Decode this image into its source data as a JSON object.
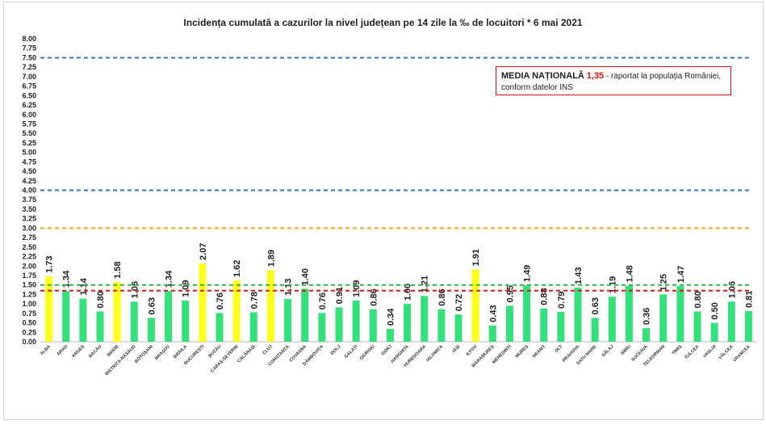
{
  "chart_data": {
    "type": "bar",
    "title": "Incidența cumulată a cazurilor la nivel județean pe 14 zile la ‰ de locuitori *   6 mai 2021",
    "ylim": [
      0,
      8
    ],
    "yticks": [
      "0.00",
      "0.25",
      "0.50",
      "0.75",
      "1.00",
      "1.25",
      "1.50",
      "1.75",
      "2.00",
      "2.25",
      "2.50",
      "2.75",
      "3.00",
      "3.25",
      "3.50",
      "3.75",
      "4.00",
      "4.25",
      "4.50",
      "4.75",
      "5.00",
      "5.25",
      "5.50",
      "5.75",
      "6.00",
      "6.25",
      "6.50",
      "6.75",
      "7.00",
      "7.25",
      "7.50",
      "7.75",
      "8.00"
    ],
    "grid": false,
    "categories": [
      "ALBA",
      "ARAD",
      "ARGEȘ",
      "BACĂU",
      "BIHOR",
      "BISTRIȚA-NĂSĂUD",
      "BOTOȘANI",
      "BRAȘOV",
      "BRĂILA",
      "BUCUREȘTI",
      "BUZĂU",
      "CARAȘ-SEVERIN",
      "CĂLĂRAȘI",
      "CLUJ",
      "CONSTANȚA",
      "COVASNA",
      "DÂMBOVIȚA",
      "DOLJ",
      "GALAȚI",
      "GIURGIU",
      "GORJ",
      "HARGHITA",
      "HUNEDOARA",
      "IALOMIȚA",
      "IAȘI",
      "ILFOV",
      "MARAMUREȘ",
      "MEHEDINȚI",
      "MUREȘ",
      "NEAMȚ",
      "OLT",
      "PRAHOVA",
      "SATU MARE",
      "SĂLAJ",
      "SIBIU",
      "SUCEAVA",
      "TELEORMAN",
      "TIMIȘ",
      "TULCEA",
      "VASLUI",
      "VÂLCEA",
      "VRANCEA"
    ],
    "values": [
      1.73,
      1.34,
      1.14,
      0.8,
      1.58,
      1.06,
      0.63,
      1.34,
      1.09,
      2.07,
      0.76,
      1.62,
      0.78,
      1.89,
      1.13,
      1.4,
      0.76,
      0.91,
      1.09,
      0.86,
      0.34,
      1.0,
      1.21,
      0.86,
      0.72,
      1.91,
      0.43,
      0.95,
      1.49,
      0.88,
      0.79,
      1.43,
      0.63,
      1.19,
      1.48,
      0.36,
      1.25,
      1.47,
      0.8,
      0.5,
      1.06,
      0.81
    ],
    "value_labels": [
      "1.73",
      "1.34",
      "1.14",
      "0.80",
      "1.58",
      "1.06",
      "0.63",
      "1.34",
      "1.09",
      "2.07",
      "0.76",
      "1.62",
      "0.78",
      "1.89",
      "1.13",
      "1.40",
      "0.76",
      "0.91",
      "1.09",
      "0.86",
      "0.34",
      "1.00",
      "1.21",
      "0.86",
      "0.72",
      "1.91",
      "0.43",
      "0.95",
      "1.49",
      "0.88",
      "0.79",
      "1.43",
      "0.63",
      "1.19",
      "1.48",
      "0.36",
      "1.25",
      "1.47",
      "0.80",
      "0.50",
      "1.06",
      "0.81"
    ],
    "bar_color_default": "#33e07a",
    "bar_color_highlight": "#ffff1a",
    "highlight_threshold": 1.5,
    "reference_lines": [
      {
        "value": 7.5,
        "color": "#2e75c7"
      },
      {
        "value": 4.0,
        "color": "#2e75c7"
      },
      {
        "value": 3.0,
        "color": "#f2a417"
      },
      {
        "value": 1.5,
        "color": "#2fb33f"
      },
      {
        "value": 1.35,
        "color": "#e01515"
      }
    ]
  },
  "note": {
    "headline": "MEDIA NAȚIONALĂ",
    "value": "1,35",
    "text": "- raportat la populația României,",
    "line2": "conform datelor INS"
  }
}
